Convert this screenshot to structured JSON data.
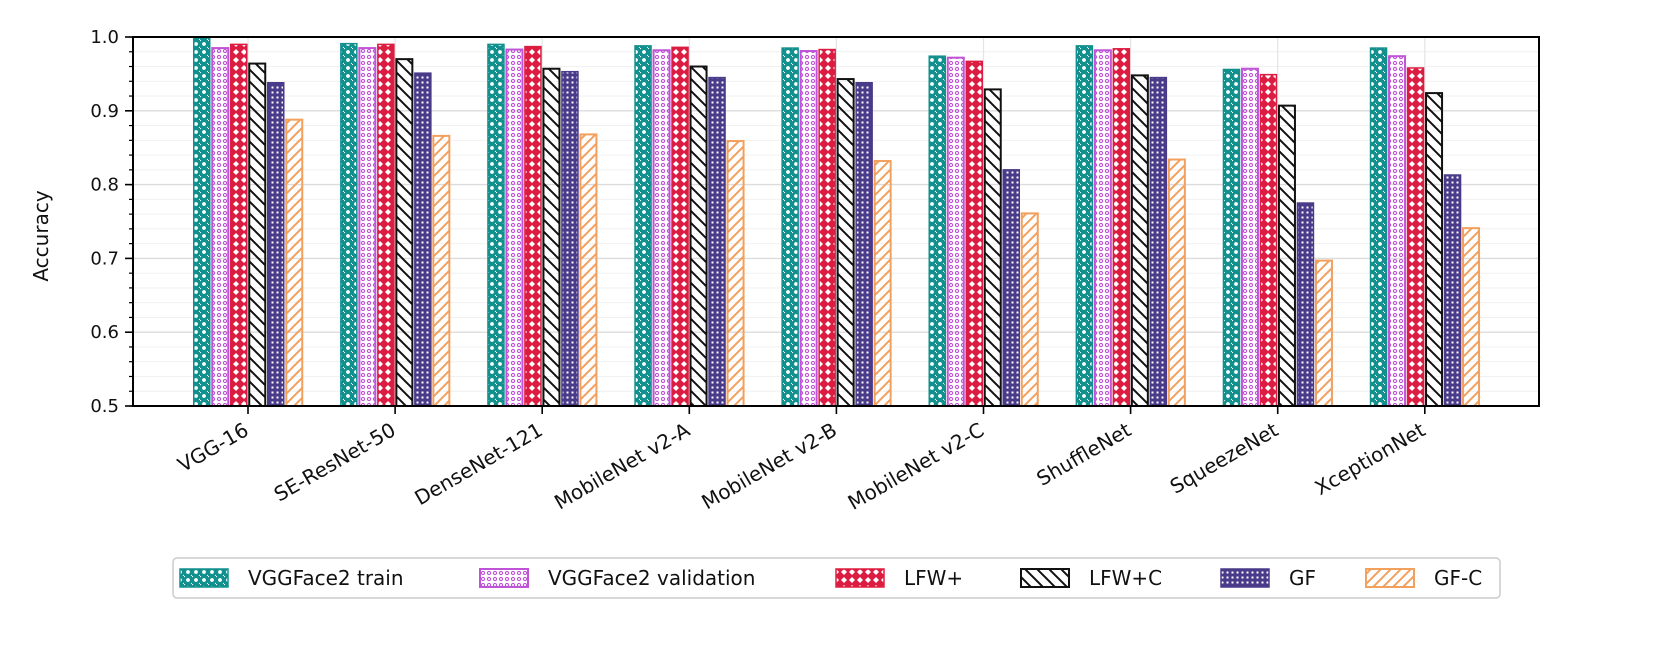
{
  "chart_data": {
    "type": "bar",
    "title": "",
    "xlabel": "",
    "ylabel": "Accuracy",
    "ylim": [
      0.5,
      1.0
    ],
    "yticks": [
      "0.5",
      "0.6",
      "0.7",
      "0.8",
      "0.9",
      "1.0"
    ],
    "grid": true,
    "legend_position": "bottom",
    "categories": [
      "VGG-16",
      "SE-ResNet-50",
      "DenseNet-121",
      "MobileNet v2-A",
      "MobileNet v2-B",
      "MobileNet v2-C",
      "ShuffleNet",
      "SqueezeNet",
      "XceptionNet"
    ],
    "series": [
      {
        "name": "VGGFace2 train",
        "color": "#12908e",
        "pattern": "dots-cross",
        "values": [
          0.999,
          0.991,
          0.99,
          0.988,
          0.985,
          0.974,
          0.988,
          0.956,
          0.985
        ]
      },
      {
        "name": "VGGFace2 validation",
        "color": "#c054d6",
        "pattern": "small-circles",
        "values": [
          0.985,
          0.985,
          0.983,
          0.982,
          0.981,
          0.972,
          0.982,
          0.957,
          0.974
        ]
      },
      {
        "name": "LFW+",
        "color": "#dd1c41",
        "pattern": "crosshatch",
        "values": [
          0.99,
          0.99,
          0.987,
          0.986,
          0.983,
          0.967,
          0.984,
          0.949,
          0.958
        ]
      },
      {
        "name": "LFW+C",
        "color": "#111111",
        "pattern": "backslash",
        "values": [
          0.964,
          0.97,
          0.957,
          0.96,
          0.943,
          0.929,
          0.948,
          0.907,
          0.924
        ]
      },
      {
        "name": "GF",
        "color": "#4a3a8a",
        "pattern": "grid-dots",
        "values": [
          0.938,
          0.951,
          0.953,
          0.945,
          0.938,
          0.82,
          0.945,
          0.775,
          0.813
        ]
      },
      {
        "name": "GF-C",
        "color": "#f2a05e",
        "pattern": "slash",
        "values": [
          0.888,
          0.866,
          0.868,
          0.859,
          0.832,
          0.761,
          0.834,
          0.697,
          0.741
        ]
      }
    ]
  }
}
